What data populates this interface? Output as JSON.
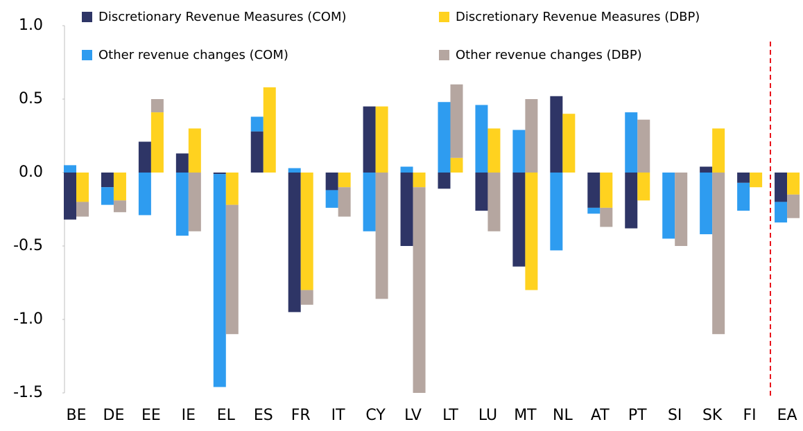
{
  "chart_data": {
    "type": "bar",
    "categories": [
      "BE",
      "DE",
      "EE",
      "IE",
      "EL",
      "ES",
      "FR",
      "IT",
      "CY",
      "LV",
      "LT",
      "LU",
      "MT",
      "NL",
      "AT",
      "PT",
      "SI",
      "SK",
      "FI",
      "EA"
    ],
    "series": [
      {
        "name": "Discretionary Revenue Measures (COM)",
        "color": "#2e3566",
        "values": [
          -0.32,
          -0.1,
          0.21,
          0.13,
          -0.01,
          0.28,
          -0.95,
          -0.12,
          0.45,
          -0.5,
          -0.11,
          -0.26,
          -0.64,
          0.52,
          -0.24,
          -0.38,
          0,
          0.04,
          -0.07,
          -0.2
        ]
      },
      {
        "name": "Other revenue changes (COM)",
        "color": "#2e9cf0",
        "values": [
          0.05,
          -0.12,
          -0.29,
          -0.43,
          -1.45,
          0.1,
          0.03,
          -0.12,
          -0.4,
          0.04,
          0.48,
          0.46,
          0.29,
          -0.53,
          -0.04,
          0.41,
          -0.45,
          -0.42,
          -0.19,
          -0.14
        ]
      },
      {
        "name": "Discretionary Revenue Measures (DBP)",
        "color": "#ffd21f",
        "values": [
          -0.2,
          -0.19,
          0.41,
          0.3,
          -0.22,
          0.58,
          -0.8,
          -0.1,
          0.45,
          -0.1,
          0.1,
          0.3,
          -0.8,
          0.4,
          -0.24,
          -0.19,
          0,
          0.3,
          -0.1,
          -0.15
        ]
      },
      {
        "name": "Other revenue changes (DBP)",
        "color": "#b5a6a0",
        "values": [
          -0.1,
          -0.08,
          0.09,
          -0.4,
          -0.88,
          0,
          -0.1,
          -0.2,
          -0.86,
          -1.4,
          0.5,
          -0.4,
          0.5,
          0,
          -0.13,
          0.36,
          -0.5,
          -1.1,
          0,
          -0.16
        ]
      }
    ],
    "ylim": [
      -1.5,
      1.0
    ],
    "yticks": [
      {
        "value": 1,
        "label": "1.0"
      },
      0.5,
      {
        "value": 0,
        "label": "0.0"
      },
      -0.5,
      {
        "value": -1,
        "label": "-1.0"
      },
      -1.5
    ]
  }
}
